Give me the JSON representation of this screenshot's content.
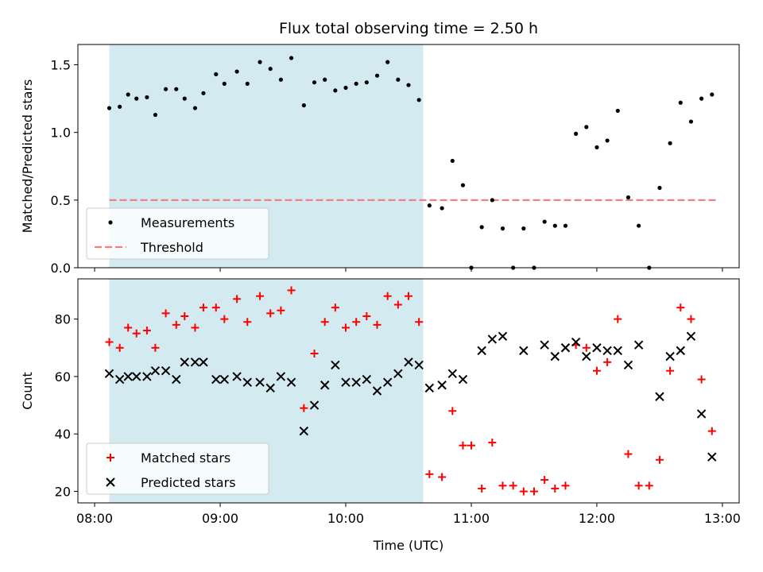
{
  "chart_data": {
    "type": "scatter",
    "title": "Flux total observing time = 2.50 h",
    "xlabel": "Time (UTC)",
    "x_ticks": [
      "08:00",
      "09:00",
      "10:00",
      "11:00",
      "12:00",
      "13:00"
    ],
    "xlim": [
      "07:52",
      "13:08"
    ],
    "highlight_span": {
      "start": "08:07",
      "end": "10:37",
      "color": "#d3eaf0"
    },
    "top_panel": {
      "ylabel": "Matched/Predicted stars",
      "ylim": [
        0,
        1.65
      ],
      "y_ticks": [
        "0.0",
        "0.5",
        "1.0",
        "1.5"
      ],
      "legend": {
        "position": "lower-left",
        "entries": [
          "Measurements",
          "Threshold"
        ]
      },
      "threshold": {
        "name": "Threshold",
        "value": 0.5,
        "x_start": "08:07",
        "x_end": "12:57",
        "color": "#f08080"
      },
      "series": [
        {
          "name": "Measurements",
          "color": "#000000",
          "marker": "dot",
          "points": [
            [
              "08:07",
              1.18
            ],
            [
              "08:12",
              1.19
            ],
            [
              "08:16",
              1.28
            ],
            [
              "08:20",
              1.25
            ],
            [
              "08:25",
              1.26
            ],
            [
              "08:29",
              1.13
            ],
            [
              "08:34",
              1.32
            ],
            [
              "08:39",
              1.32
            ],
            [
              "08:43",
              1.25
            ],
            [
              "08:48",
              1.18
            ],
            [
              "08:52",
              1.29
            ],
            [
              "08:58",
              1.43
            ],
            [
              "09:02",
              1.36
            ],
            [
              "09:08",
              1.45
            ],
            [
              "09:13",
              1.36
            ],
            [
              "09:19",
              1.52
            ],
            [
              "09:24",
              1.47
            ],
            [
              "09:29",
              1.39
            ],
            [
              "09:34",
              1.55
            ],
            [
              "09:40",
              1.2
            ],
            [
              "09:45",
              1.37
            ],
            [
              "09:50",
              1.39
            ],
            [
              "09:55",
              1.31
            ],
            [
              "10:00",
              1.33
            ],
            [
              "10:05",
              1.36
            ],
            [
              "10:10",
              1.37
            ],
            [
              "10:15",
              1.42
            ],
            [
              "10:20",
              1.52
            ],
            [
              "10:25",
              1.39
            ],
            [
              "10:30",
              1.35
            ],
            [
              "10:35",
              1.24
            ],
            [
              "10:40",
              0.46
            ],
            [
              "10:46",
              0.44
            ],
            [
              "10:51",
              0.79
            ],
            [
              "10:56",
              0.61
            ],
            [
              "11:00",
              0.0
            ],
            [
              "11:05",
              0.3
            ],
            [
              "11:10",
              0.5
            ],
            [
              "11:15",
              0.29
            ],
            [
              "11:20",
              0.0
            ],
            [
              "11:25",
              0.29
            ],
            [
              "11:30",
              0.0
            ],
            [
              "11:35",
              0.34
            ],
            [
              "11:40",
              0.31
            ],
            [
              "11:45",
              0.31
            ],
            [
              "11:50",
              0.99
            ],
            [
              "11:55",
              1.04
            ],
            [
              "12:00",
              0.89
            ],
            [
              "12:05",
              0.94
            ],
            [
              "12:10",
              1.16
            ],
            [
              "12:15",
              0.52
            ],
            [
              "12:20",
              0.31
            ],
            [
              "12:25",
              0.0
            ],
            [
              "12:30",
              0.59
            ],
            [
              "12:35",
              0.92
            ],
            [
              "12:40",
              1.22
            ],
            [
              "12:45",
              1.08
            ],
            [
              "12:50",
              1.25
            ],
            [
              "12:55",
              1.28
            ]
          ]
        }
      ]
    },
    "bottom_panel": {
      "ylabel": "Count",
      "ylim": [
        16,
        94
      ],
      "y_ticks": [
        "20",
        "40",
        "60",
        "80"
      ],
      "legend": {
        "position": "lower-left",
        "entries": [
          "Matched stars",
          "Predicted stars"
        ]
      },
      "series": [
        {
          "name": "Matched stars",
          "color": "#ff0000",
          "marker": "plus",
          "points": [
            [
              "08:07",
              72
            ],
            [
              "08:12",
              70
            ],
            [
              "08:16",
              77
            ],
            [
              "08:20",
              75
            ],
            [
              "08:25",
              76
            ],
            [
              "08:29",
              70
            ],
            [
              "08:34",
              82
            ],
            [
              "08:39",
              78
            ],
            [
              "08:43",
              81
            ],
            [
              "08:48",
              77
            ],
            [
              "08:52",
              84
            ],
            [
              "08:58",
              84
            ],
            [
              "09:02",
              80
            ],
            [
              "09:08",
              87
            ],
            [
              "09:13",
              79
            ],
            [
              "09:19",
              88
            ],
            [
              "09:24",
              82
            ],
            [
              "09:29",
              83
            ],
            [
              "09:34",
              90
            ],
            [
              "09:40",
              49
            ],
            [
              "09:45",
              68
            ],
            [
              "09:50",
              79
            ],
            [
              "09:55",
              84
            ],
            [
              "10:00",
              77
            ],
            [
              "10:05",
              79
            ],
            [
              "10:10",
              81
            ],
            [
              "10:15",
              78
            ],
            [
              "10:20",
              88
            ],
            [
              "10:25",
              85
            ],
            [
              "10:30",
              88
            ],
            [
              "10:35",
              79
            ],
            [
              "10:40",
              26
            ],
            [
              "10:46",
              25
            ],
            [
              "10:51",
              48
            ],
            [
              "10:56",
              36
            ],
            [
              "11:00",
              36
            ],
            [
              "11:05",
              21
            ],
            [
              "11:10",
              37
            ],
            [
              "11:15",
              22
            ],
            [
              "11:20",
              22
            ],
            [
              "11:25",
              20
            ],
            [
              "11:30",
              20
            ],
            [
              "11:35",
              24
            ],
            [
              "11:40",
              21
            ],
            [
              "11:45",
              22
            ],
            [
              "11:50",
              71
            ],
            [
              "11:55",
              70
            ],
            [
              "12:00",
              62
            ],
            [
              "12:05",
              65
            ],
            [
              "12:10",
              80
            ],
            [
              "12:15",
              33
            ],
            [
              "12:20",
              22
            ],
            [
              "12:25",
              22
            ],
            [
              "12:30",
              31
            ],
            [
              "12:35",
              62
            ],
            [
              "12:40",
              84
            ],
            [
              "12:45",
              80
            ],
            [
              "12:50",
              59
            ],
            [
              "12:55",
              41
            ]
          ]
        },
        {
          "name": "Predicted stars",
          "color": "#000000",
          "marker": "x",
          "points": [
            [
              "08:07",
              61
            ],
            [
              "08:12",
              59
            ],
            [
              "08:16",
              60
            ],
            [
              "08:20",
              60
            ],
            [
              "08:25",
              60
            ],
            [
              "08:29",
              62
            ],
            [
              "08:34",
              62
            ],
            [
              "08:39",
              59
            ],
            [
              "08:43",
              65
            ],
            [
              "08:48",
              65
            ],
            [
              "08:52",
              65
            ],
            [
              "08:58",
              59
            ],
            [
              "09:02",
              59
            ],
            [
              "09:08",
              60
            ],
            [
              "09:13",
              58
            ],
            [
              "09:19",
              58
            ],
            [
              "09:24",
              56
            ],
            [
              "09:29",
              60
            ],
            [
              "09:34",
              58
            ],
            [
              "09:40",
              41
            ],
            [
              "09:45",
              50
            ],
            [
              "09:50",
              57
            ],
            [
              "09:55",
              64
            ],
            [
              "10:00",
              58
            ],
            [
              "10:05",
              58
            ],
            [
              "10:10",
              59
            ],
            [
              "10:15",
              55
            ],
            [
              "10:20",
              58
            ],
            [
              "10:25",
              61
            ],
            [
              "10:30",
              65
            ],
            [
              "10:35",
              64
            ],
            [
              "10:40",
              56
            ],
            [
              "10:46",
              57
            ],
            [
              "10:51",
              61
            ],
            [
              "10:56",
              59
            ],
            [
              "11:05",
              69
            ],
            [
              "11:10",
              73
            ],
            [
              "11:15",
              74
            ],
            [
              "11:25",
              69
            ],
            [
              "11:35",
              71
            ],
            [
              "11:40",
              67
            ],
            [
              "11:45",
              70
            ],
            [
              "11:50",
              72
            ],
            [
              "11:55",
              67
            ],
            [
              "12:00",
              70
            ],
            [
              "12:05",
              69
            ],
            [
              "12:10",
              69
            ],
            [
              "12:15",
              64
            ],
            [
              "12:20",
              71
            ],
            [
              "12:30",
              53
            ],
            [
              "12:35",
              67
            ],
            [
              "12:40",
              69
            ],
            [
              "12:45",
              74
            ],
            [
              "12:50",
              47
            ],
            [
              "12:55",
              32
            ]
          ]
        }
      ]
    }
  }
}
